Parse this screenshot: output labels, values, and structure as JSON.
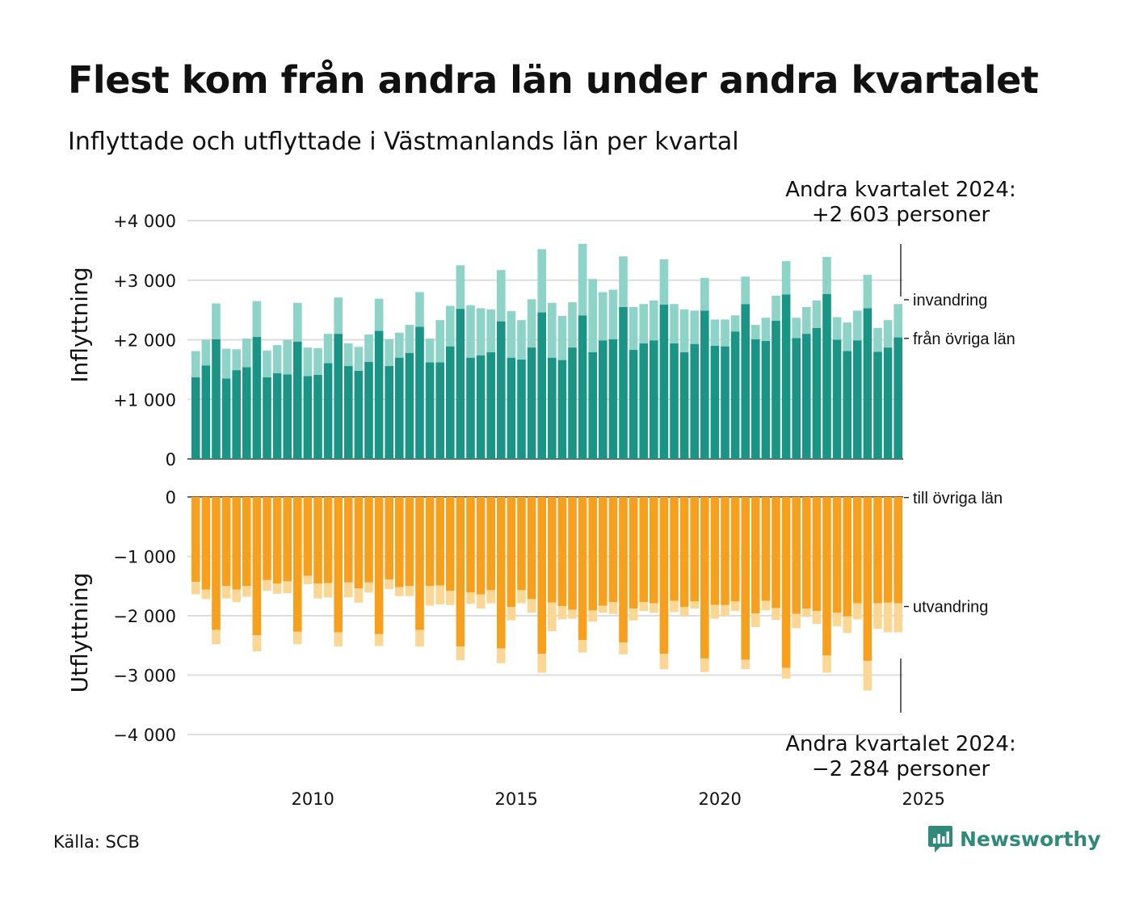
{
  "title": "Flest kom från andra län under andra kvartalet",
  "subtitle": "Inflyttade och utflyttade i Västmanlands län per kvartal",
  "annotation_top": {
    "line1": "Andra kvartalet 2024:",
    "line2": "+2 603 personer"
  },
  "annotation_bottom": {
    "line1": "Andra kvartalet 2024:",
    "line2": "−2 284 personer"
  },
  "source": "Källa: SCB",
  "brand": "Newsworthy",
  "colors": {
    "fran_ovriga_lan": "#1a9484",
    "invandring": "#8dd3c8",
    "till_ovriga_lan": "#f6a01e",
    "utvandring": "#fbd795"
  },
  "chart_data": [
    {
      "type": "bar",
      "stacked": true,
      "ylabel": "Inflyttning",
      "ylim": [
        0,
        4000
      ],
      "yticks": [
        0,
        1000,
        2000,
        3000,
        4000
      ],
      "ytick_labels": [
        "0",
        "+1 000",
        "+2 000",
        "+3 000",
        "+4 000"
      ],
      "x_start": "2007 Q1",
      "x_end": "2024 Q2",
      "xticks": [
        "2010",
        "2015",
        "2020",
        "2025"
      ],
      "series": [
        {
          "name": "från övriga län",
          "values": [
            1370,
            1570,
            2010,
            1350,
            1490,
            1540,
            2050,
            1370,
            1440,
            1420,
            1970,
            1390,
            1410,
            1610,
            2100,
            1560,
            1480,
            1630,
            2150,
            1560,
            1700,
            1780,
            2220,
            1620,
            1620,
            1890,
            2520,
            1700,
            1740,
            1790,
            2310,
            1700,
            1670,
            1870,
            2460,
            1700,
            1660,
            1870,
            2410,
            1790,
            1990,
            2010,
            2550,
            1830,
            1940,
            1990,
            2590,
            1940,
            1790,
            1930,
            2490,
            1900,
            1890,
            2140,
            2600,
            2010,
            1980,
            2320,
            2760,
            2030,
            2100,
            2200,
            2770,
            2000,
            1810,
            1990,
            2530,
            1800,
            1870,
            2040
          ]
        },
        {
          "name": "invandring",
          "values": [
            440,
            430,
            600,
            500,
            350,
            480,
            600,
            450,
            470,
            580,
            650,
            480,
            450,
            490,
            610,
            380,
            400,
            460,
            540,
            450,
            420,
            470,
            580,
            400,
            710,
            680,
            730,
            880,
            790,
            720,
            860,
            780,
            660,
            810,
            1060,
            920,
            740,
            760,
            1200,
            1230,
            810,
            830,
            850,
            720,
            660,
            670,
            760,
            660,
            720,
            560,
            550,
            440,
            450,
            270,
            460,
            240,
            390,
            420,
            560,
            340,
            450,
            460,
            620,
            380,
            480,
            500,
            560,
            400,
            460,
            560
          ]
        }
      ]
    },
    {
      "type": "bar",
      "stacked": true,
      "ylabel": "Utflyttning",
      "ylim": [
        -4000,
        0
      ],
      "yticks": [
        0,
        -1000,
        -2000,
        -3000,
        -4000
      ],
      "ytick_labels": [
        "0",
        "−1 000",
        "−2 000",
        "−3 000",
        "−4 000"
      ],
      "x_start": "2007 Q1",
      "x_end": "2024 Q2",
      "xticks": [
        "2010",
        "2015",
        "2020",
        "2025"
      ],
      "series": [
        {
          "name": "till övriga län",
          "values": [
            -1430,
            -1560,
            -2240,
            -1500,
            -1560,
            -1500,
            -2330,
            -1400,
            -1460,
            -1420,
            -2270,
            -1330,
            -1460,
            -1450,
            -2280,
            -1440,
            -1540,
            -1440,
            -2310,
            -1390,
            -1520,
            -1500,
            -2240,
            -1500,
            -1490,
            -1580,
            -2520,
            -1610,
            -1640,
            -1570,
            -2550,
            -1850,
            -1570,
            -1720,
            -2640,
            -1780,
            -1840,
            -1900,
            -2410,
            -1910,
            -1830,
            -1770,
            -2450,
            -1880,
            -1770,
            -1790,
            -2640,
            -1750,
            -1850,
            -1760,
            -2720,
            -1820,
            -1820,
            -1760,
            -2740,
            -1960,
            -1750,
            -1870,
            -2880,
            -1970,
            -1880,
            -1920,
            -2670,
            -1950,
            -2010,
            -1790,
            -2760,
            -1790,
            -1780,
            -1790
          ]
        },
        {
          "name": "utvandring",
          "values": [
            -210,
            -160,
            -240,
            -210,
            -210,
            -180,
            -270,
            -180,
            -170,
            -200,
            -210,
            -140,
            -250,
            -240,
            -240,
            -250,
            -240,
            -170,
            -200,
            -160,
            -150,
            -170,
            -280,
            -330,
            -320,
            -240,
            -230,
            -190,
            -240,
            -220,
            -250,
            -230,
            -220,
            -230,
            -320,
            -480,
            -220,
            -150,
            -210,
            -190,
            -120,
            -200,
            -200,
            -200,
            -150,
            -160,
            -260,
            -190,
            -160,
            -120,
            -230,
            -230,
            -180,
            -160,
            -160,
            -230,
            -160,
            -200,
            -180,
            -240,
            -140,
            -220,
            -290,
            -230,
            -280,
            -270,
            -500,
            -430,
            -500,
            -490
          ]
        }
      ]
    }
  ]
}
